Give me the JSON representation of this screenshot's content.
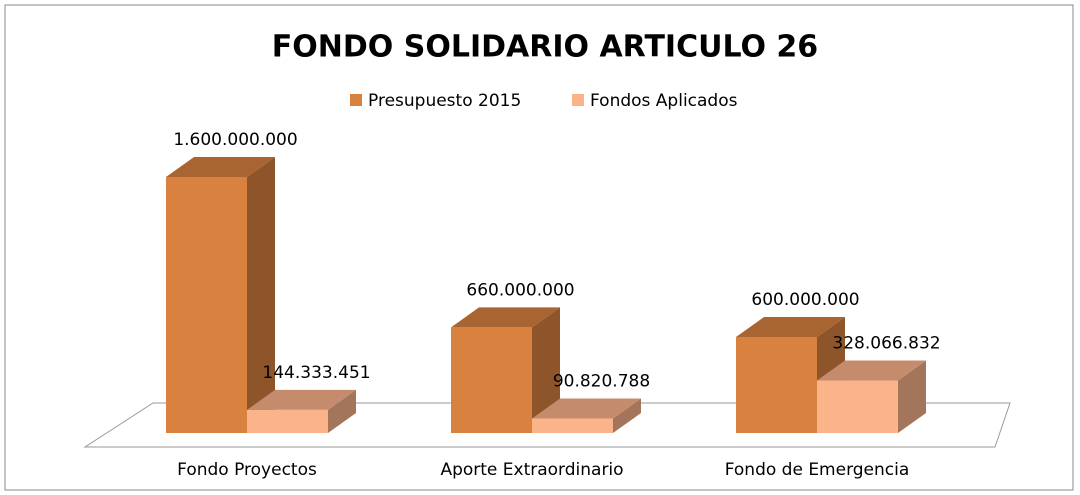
{
  "chart_data": {
    "type": "bar3d",
    "title": "FONDO SOLIDARIO ARTICULO 26",
    "categories": [
      "Fondo Proyectos",
      "Aporte Extraordinario",
      "Fondo de Emergencia"
    ],
    "series": [
      {
        "name": "Presupuesto 2015",
        "color": "#d9823f",
        "values": [
          1600000000,
          660000000,
          600000000
        ],
        "value_labels": [
          "1.600.000.000",
          "660.000.000",
          "600.000.000"
        ]
      },
      {
        "name": "Fondos Aplicados",
        "color": "#fbb48a",
        "values": [
          144333451,
          90820788,
          328066832
        ],
        "value_labels": [
          "144.333.451",
          "90.820.788",
          "328.066.832"
        ]
      }
    ],
    "legend": "top"
  }
}
